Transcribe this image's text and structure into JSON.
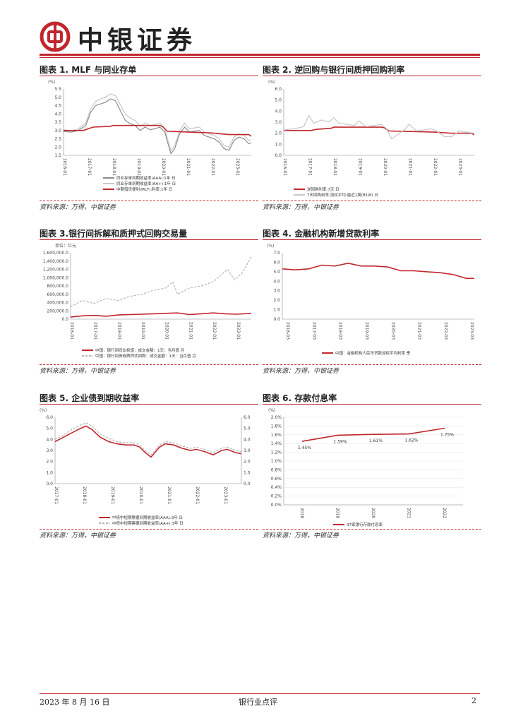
{
  "header": {
    "brand": "中银证券",
    "logo": "中国银行"
  },
  "colors": {
    "accent": "#c0272d",
    "grey": "#9a9a9a",
    "lightgrey": "#c8c8c8"
  },
  "figures": [
    {
      "title": "图表 1. MLF 与同业存单",
      "source": "资料来源：万得，中银证券"
    },
    {
      "title": "图表 2. 逆回购与银行间质押回购利率",
      "source": "资料来源：万得，中银证券"
    },
    {
      "title": "图表 3.银行间拆解和质押式回购交易量",
      "source": "资料来源：万得，中银证券"
    },
    {
      "title": "图表 4. 金融机构新增贷款利率",
      "source": "资料来源：万得，中银证券"
    },
    {
      "title": "图表 5. 企业债到期收益率",
      "source": "资料来源：万得，中银证券"
    },
    {
      "title": "图表 6. 存款付息率",
      "source": "资料来源：万得，中银证券"
    }
  ],
  "chart_data": [
    {
      "type": "line",
      "title": "MLF 与同业存单",
      "unit": "(%)",
      "ylim": [
        1.5,
        5.5
      ],
      "yticks": [
        "5.5",
        "5.0",
        "4.5",
        "4.0",
        "3.5",
        "3.0",
        "2.5",
        "2.0",
        "1.5"
      ],
      "xticks": [
        "2016-01",
        "2017-01",
        "2018-01",
        "2019-01",
        "2020-01",
        "2021-01",
        "2022-01",
        "2023-01"
      ],
      "x_range": [
        2016.0,
        2023.6
      ],
      "series": [
        {
          "name": "同业存单到期收益率(AAA):1年  日",
          "color": "#8c8c8c",
          "x": [
            2016.0,
            2016.3,
            2016.6,
            2016.9,
            2017.1,
            2017.3,
            2017.5,
            2017.7,
            2017.9,
            2018.1,
            2018.3,
            2018.5,
            2018.7,
            2018.9,
            2019.1,
            2019.3,
            2019.5,
            2019.7,
            2019.9,
            2020.1,
            2020.2,
            2020.35,
            2020.5,
            2020.7,
            2020.9,
            2021.1,
            2021.3,
            2021.5,
            2021.7,
            2021.9,
            2022.1,
            2022.3,
            2022.5,
            2022.7,
            2022.9,
            2023.1,
            2023.3,
            2023.5,
            2023.6
          ],
          "values": [
            2.95,
            2.9,
            3.0,
            3.3,
            4.1,
            4.5,
            4.6,
            4.7,
            4.9,
            4.8,
            4.2,
            3.6,
            3.4,
            3.3,
            3.0,
            3.2,
            3.05,
            3.1,
            3.2,
            2.9,
            2.35,
            1.6,
            1.9,
            2.8,
            3.2,
            2.9,
            2.95,
            3.0,
            2.7,
            2.6,
            2.5,
            2.3,
            1.9,
            1.8,
            2.4,
            2.6,
            2.5,
            2.2,
            2.25
          ]
        },
        {
          "name": "同业存单到期收益率(AA+):1年  日",
          "color": "#c8c8c8",
          "x": [
            2016.0,
            2016.3,
            2016.6,
            2016.9,
            2017.1,
            2017.3,
            2017.5,
            2017.7,
            2017.9,
            2018.1,
            2018.3,
            2018.5,
            2018.7,
            2018.9,
            2019.1,
            2019.3,
            2019.5,
            2019.7,
            2019.9,
            2020.1,
            2020.2,
            2020.35,
            2020.5,
            2020.7,
            2020.9,
            2021.1,
            2021.3,
            2021.5,
            2021.7,
            2021.9,
            2022.1,
            2022.3,
            2022.5,
            2022.7,
            2022.9,
            2023.1,
            2023.3,
            2023.5,
            2023.6
          ],
          "values": [
            3.05,
            3.0,
            3.1,
            3.45,
            4.3,
            4.75,
            4.9,
            5.0,
            5.2,
            5.1,
            4.55,
            4.0,
            3.75,
            3.6,
            3.25,
            3.45,
            3.3,
            3.35,
            3.45,
            3.1,
            2.55,
            1.8,
            2.1,
            3.0,
            3.45,
            3.1,
            3.15,
            3.2,
            2.9,
            2.8,
            2.7,
            2.5,
            2.1,
            2.0,
            2.6,
            2.8,
            2.7,
            2.4,
            2.45
          ]
        },
        {
          "name": "中期借贷便利(MLF):利率:1年  日",
          "color": "#c0272d",
          "x": [
            2016.0,
            2016.8,
            2017.0,
            2017.2,
            2017.9,
            2018.0,
            2019.9,
            2020.0,
            2020.2,
            2022.0,
            2022.7,
            2023.5,
            2023.6
          ],
          "values": [
            3.0,
            3.0,
            3.1,
            3.2,
            3.25,
            3.3,
            3.3,
            3.25,
            2.95,
            2.85,
            2.75,
            2.75,
            2.65
          ]
        }
      ]
    },
    {
      "type": "line",
      "title": "逆回购与银行间质押回购利率",
      "unit": "(%)",
      "ylim": [
        0.0,
        6.0
      ],
      "yticks": [
        "6.0",
        "5.0",
        "4.0",
        "3.0",
        "2.0",
        "1.0",
        "0.0"
      ],
      "xticks": [
        "2016-01",
        "2017-01",
        "2018-01",
        "2019-01",
        "2020-01",
        "2021-01",
        "2022-01",
        "2023-01"
      ],
      "x_range": [
        2016.0,
        2023.6
      ],
      "series": [
        {
          "name": "逆回购利率:7天  日",
          "color": "#c0272d",
          "x": [
            2016.0,
            2017.1,
            2017.3,
            2017.9,
            2018.0,
            2019.9,
            2020.0,
            2020.2,
            2022.0,
            2022.7,
            2023.5,
            2023.6
          ],
          "values": [
            2.25,
            2.25,
            2.35,
            2.45,
            2.55,
            2.55,
            2.5,
            2.2,
            2.1,
            2.0,
            2.0,
            1.85
          ]
        },
        {
          "name": "7天回购利率:加权平均:最近1周(B1W)  日",
          "color": "#c8c8c8",
          "x": [
            2016.0,
            2016.4,
            2016.8,
            2017.0,
            2017.2,
            2017.5,
            2017.8,
            2018.0,
            2018.2,
            2018.5,
            2018.8,
            2019.0,
            2019.3,
            2019.6,
            2019.9,
            2020.1,
            2020.3,
            2020.5,
            2020.8,
            2021.0,
            2021.3,
            2021.6,
            2021.9,
            2022.1,
            2022.4,
            2022.7,
            2023.0,
            2023.3,
            2023.6
          ],
          "values": [
            2.3,
            2.4,
            2.6,
            3.6,
            2.9,
            3.2,
            3.0,
            3.4,
            2.9,
            2.8,
            2.7,
            3.1,
            2.6,
            2.7,
            2.8,
            2.4,
            1.5,
            1.8,
            2.3,
            2.8,
            2.2,
            2.3,
            2.4,
            2.2,
            1.7,
            1.7,
            2.2,
            2.1,
            2.0
          ]
        }
      ]
    },
    {
      "type": "line",
      "title": "银行间拆解和质押式回购交易量",
      "unit": "单位：亿元",
      "ylim": [
        0,
        1600000
      ],
      "yticks": [
        "1,600,000.0",
        "1,400,000.0",
        "1,200,000.0",
        "1,000,000.0",
        "800,000.0",
        "600,000.0",
        "400,000.0",
        "200,000.0",
        "0.0"
      ],
      "xticks": [
        "2016-01",
        "2017-01",
        "2018-01",
        "2019-01",
        "2020-01",
        "2021-01",
        "2022-01",
        "2023-01"
      ],
      "x_range": [
        2016.0,
        2023.6
      ],
      "series": [
        {
          "name": "中国：银行间同业拆借：成交金额：1天：当月值  月",
          "color": "#c0272d",
          "x": [
            2016.0,
            2016.5,
            2017.0,
            2017.5,
            2018.0,
            2018.5,
            2019.0,
            2019.5,
            2020.0,
            2020.5,
            2021.0,
            2021.5,
            2022.0,
            2022.5,
            2023.0,
            2023.6
          ],
          "values": [
            50000,
            80000,
            90000,
            70000,
            100000,
            110000,
            120000,
            130000,
            140000,
            150000,
            110000,
            130000,
            150000,
            130000,
            120000,
            140000
          ]
        },
        {
          "name": "中国：银行间债券质押式回购：成交金额：1天：当月值  月",
          "color": "#b4b4b4",
          "x": [
            2016.0,
            2016.5,
            2017.0,
            2017.5,
            2018.0,
            2018.5,
            2019.0,
            2019.5,
            2020.0,
            2020.3,
            2020.5,
            2021.0,
            2021.5,
            2022.0,
            2022.3,
            2022.6,
            2022.9,
            2023.2,
            2023.6
          ],
          "values": [
            300000,
            450000,
            380000,
            500000,
            450000,
            550000,
            600000,
            700000,
            750000,
            900000,
            600000,
            750000,
            800000,
            900000,
            1050000,
            1200000,
            950000,
            1100000,
            1500000
          ]
        }
      ]
    },
    {
      "type": "line",
      "title": "金融机构新增贷款利率",
      "unit": "(%)",
      "ylim": [
        0.0,
        7.0
      ],
      "yticks": [
        "7.0",
        "6.0",
        "5.0",
        "4.0",
        "3.0",
        "2.0",
        "1.0",
        "0.0"
      ],
      "xticks": [
        "2016-03",
        "2017-03",
        "2018-03",
        "2019-03",
        "2020-03",
        "2021-03",
        "2022-03",
        "2023-03"
      ],
      "x_range": [
        2016.0,
        2023.3
      ],
      "series": [
        {
          "name": "中国：金融机构人民币贷款加权平均利率  季",
          "color": "#c0272d",
          "x": [
            2016.0,
            2016.5,
            2017.0,
            2017.5,
            2018.0,
            2018.5,
            2019.0,
            2019.5,
            2020.0,
            2020.5,
            2021.0,
            2021.5,
            2022.0,
            2022.5,
            2023.0,
            2023.3
          ],
          "values": [
            5.3,
            5.2,
            5.3,
            5.7,
            5.6,
            5.9,
            5.6,
            5.6,
            5.5,
            5.1,
            5.1,
            5.0,
            4.9,
            4.7,
            4.3,
            4.3
          ]
        }
      ]
    },
    {
      "type": "line",
      "title": "企业债到期收益率",
      "unit": "(%)",
      "ylim": [
        0.0,
        6.0
      ],
      "yticks": [
        "6.0",
        "5.0",
        "4.0",
        "3.0",
        "2.0",
        "1.0",
        "0.0"
      ],
      "xticks": [
        "2017-01",
        "2018-01",
        "2019-01",
        "2020-01",
        "2021-01",
        "2022-01",
        "2023-01"
      ],
      "x_range": [
        2017.0,
        2023.6
      ],
      "series": [
        {
          "name": "中债中短期票据到期收益率(AAA):3年  日",
          "color": "#c0272d",
          "x": [
            2017.0,
            2017.3,
            2017.6,
            2017.9,
            2018.1,
            2018.3,
            2018.6,
            2018.9,
            2019.2,
            2019.5,
            2019.8,
            2020.0,
            2020.2,
            2020.4,
            2020.7,
            2020.9,
            2021.2,
            2021.5,
            2021.8,
            2022.0,
            2022.3,
            2022.6,
            2022.9,
            2023.1,
            2023.4,
            2023.6
          ],
          "values": [
            3.8,
            4.2,
            4.6,
            5.0,
            5.2,
            4.9,
            4.2,
            3.8,
            3.6,
            3.5,
            3.5,
            3.3,
            2.8,
            2.4,
            3.3,
            3.6,
            3.5,
            3.2,
            3.0,
            3.1,
            2.9,
            2.6,
            3.0,
            3.1,
            2.8,
            2.7
          ]
        },
        {
          "name": "中债中短期票据到期收益率(AA+):3年  日",
          "color": "#b4b4b4",
          "x": [
            2017.0,
            2017.3,
            2017.6,
            2017.9,
            2018.1,
            2018.3,
            2018.6,
            2018.9,
            2019.2,
            2019.5,
            2019.8,
            2020.0,
            2020.2,
            2020.4,
            2020.7,
            2020.9,
            2021.2,
            2021.5,
            2021.8,
            2022.0,
            2022.3,
            2022.6,
            2022.9,
            2023.1,
            2023.4,
            2023.6
          ],
          "values": [
            4.0,
            4.4,
            4.9,
            5.3,
            5.5,
            5.2,
            4.5,
            4.1,
            3.8,
            3.7,
            3.7,
            3.5,
            3.0,
            2.6,
            3.5,
            3.8,
            3.7,
            3.4,
            3.2,
            3.3,
            3.1,
            2.8,
            3.2,
            3.3,
            3.0,
            2.9
          ]
        }
      ]
    },
    {
      "type": "line",
      "title": "存款付息率",
      "unit": "(%)",
      "ylim": [
        0.0,
        2.0
      ],
      "yticks": [
        "2.0%",
        "1.8%",
        "1.6%",
        "1.4%",
        "1.2%",
        "1.0%",
        "0.8%",
        "0.6%",
        "0.4%",
        "0.2%",
        "0.0%"
      ],
      "categories": [
        "2018",
        "2019",
        "2020",
        "2021",
        "2022"
      ],
      "values": [
        1.45,
        1.59,
        1.61,
        1.62,
        1.75
      ],
      "data_labels": [
        "1.45%",
        "1.59%",
        "1.61%",
        "1.62%",
        "1.75%"
      ],
      "series": [
        {
          "name": "37家银行存款付息率",
          "color": "#c0272d"
        }
      ]
    }
  ],
  "footer": {
    "date": "2023 年 8 月 16 日",
    "category": "银行业点评",
    "page": "2"
  }
}
